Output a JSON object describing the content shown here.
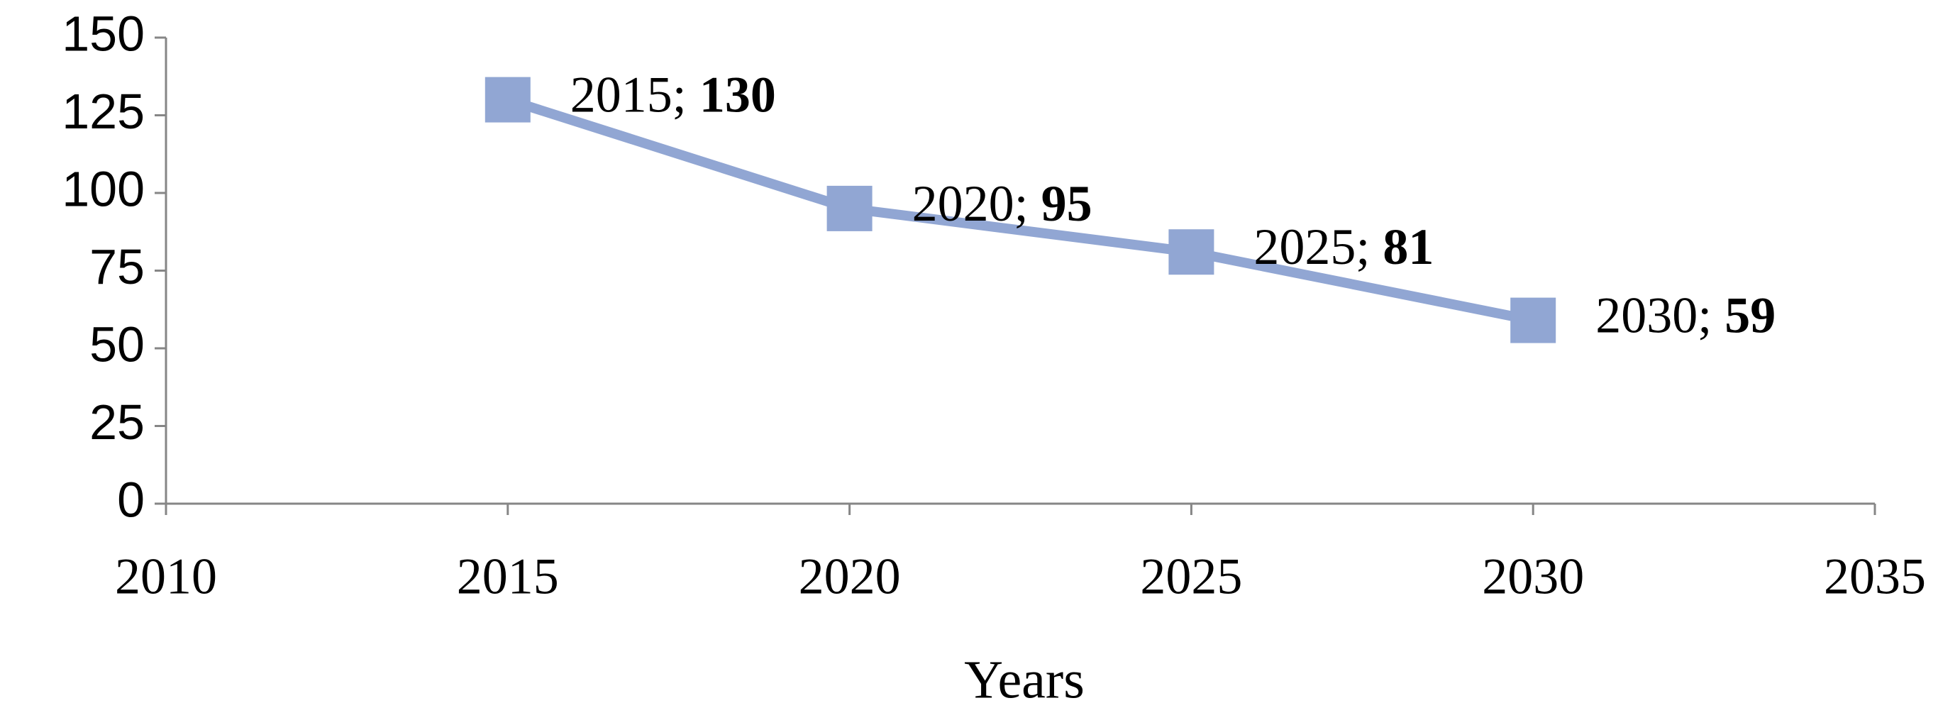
{
  "chart_data": {
    "type": "line",
    "x_label": "Years",
    "x": [
      2015,
      2020,
      2025,
      2030
    ],
    "series": [
      {
        "color": "#91a6d3",
        "values": [
          130,
          95,
          81,
          59
        ],
        "value_labels": [
          "2015; 130",
          "2020; 95",
          "2025; 81",
          "2030; 59"
        ]
      }
    ],
    "xlim": [
      2010,
      2035
    ],
    "xticks": [
      2010,
      2015,
      2020,
      2025,
      2030,
      2035
    ],
    "ylim": [
      0,
      150
    ],
    "yticks": [
      0,
      25,
      50,
      75,
      100,
      125,
      150
    ],
    "grid": false
  }
}
